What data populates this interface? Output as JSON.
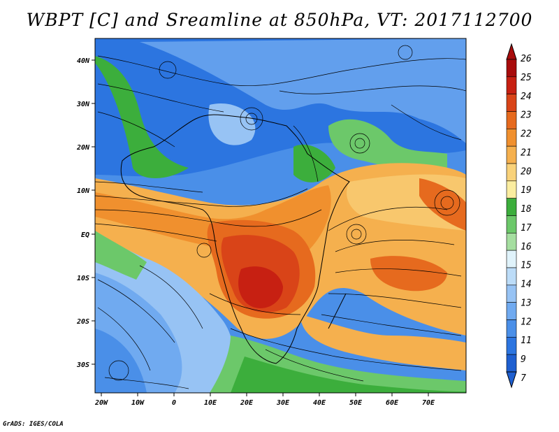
{
  "title": "WBPT [C] and Sreamline at 850hPa, VT: 2017112700",
  "credit": "GrADS: IGES/COLA",
  "lat_labels": [
    "40N",
    "30N",
    "20N",
    "10N",
    "EQ",
    "10S",
    "20S",
    "30S"
  ],
  "lon_labels": [
    "20W",
    "10W",
    "0",
    "10E",
    "20E",
    "30E",
    "40E",
    "50E",
    "60E",
    "70E"
  ],
  "colorbar": {
    "levels": [
      "7",
      "9",
      "11",
      "12",
      "13",
      "14",
      "15",
      "16",
      "17",
      "18",
      "19",
      "20",
      "21",
      "22",
      "23",
      "24",
      "25",
      "26"
    ],
    "colors": [
      "#1e5fd0",
      "#2c75e0",
      "#4a8fe8",
      "#70aaf0",
      "#97c3f4",
      "#bcdcf8",
      "#e0f3fb",
      "#a5dea0",
      "#6cc86a",
      "#3cae3c",
      "#fbeda0",
      "#f9d27a",
      "#f5b04e",
      "#f0902e",
      "#e66a1e",
      "#d94418",
      "#c72012",
      "#a80c0c"
    ]
  }
}
